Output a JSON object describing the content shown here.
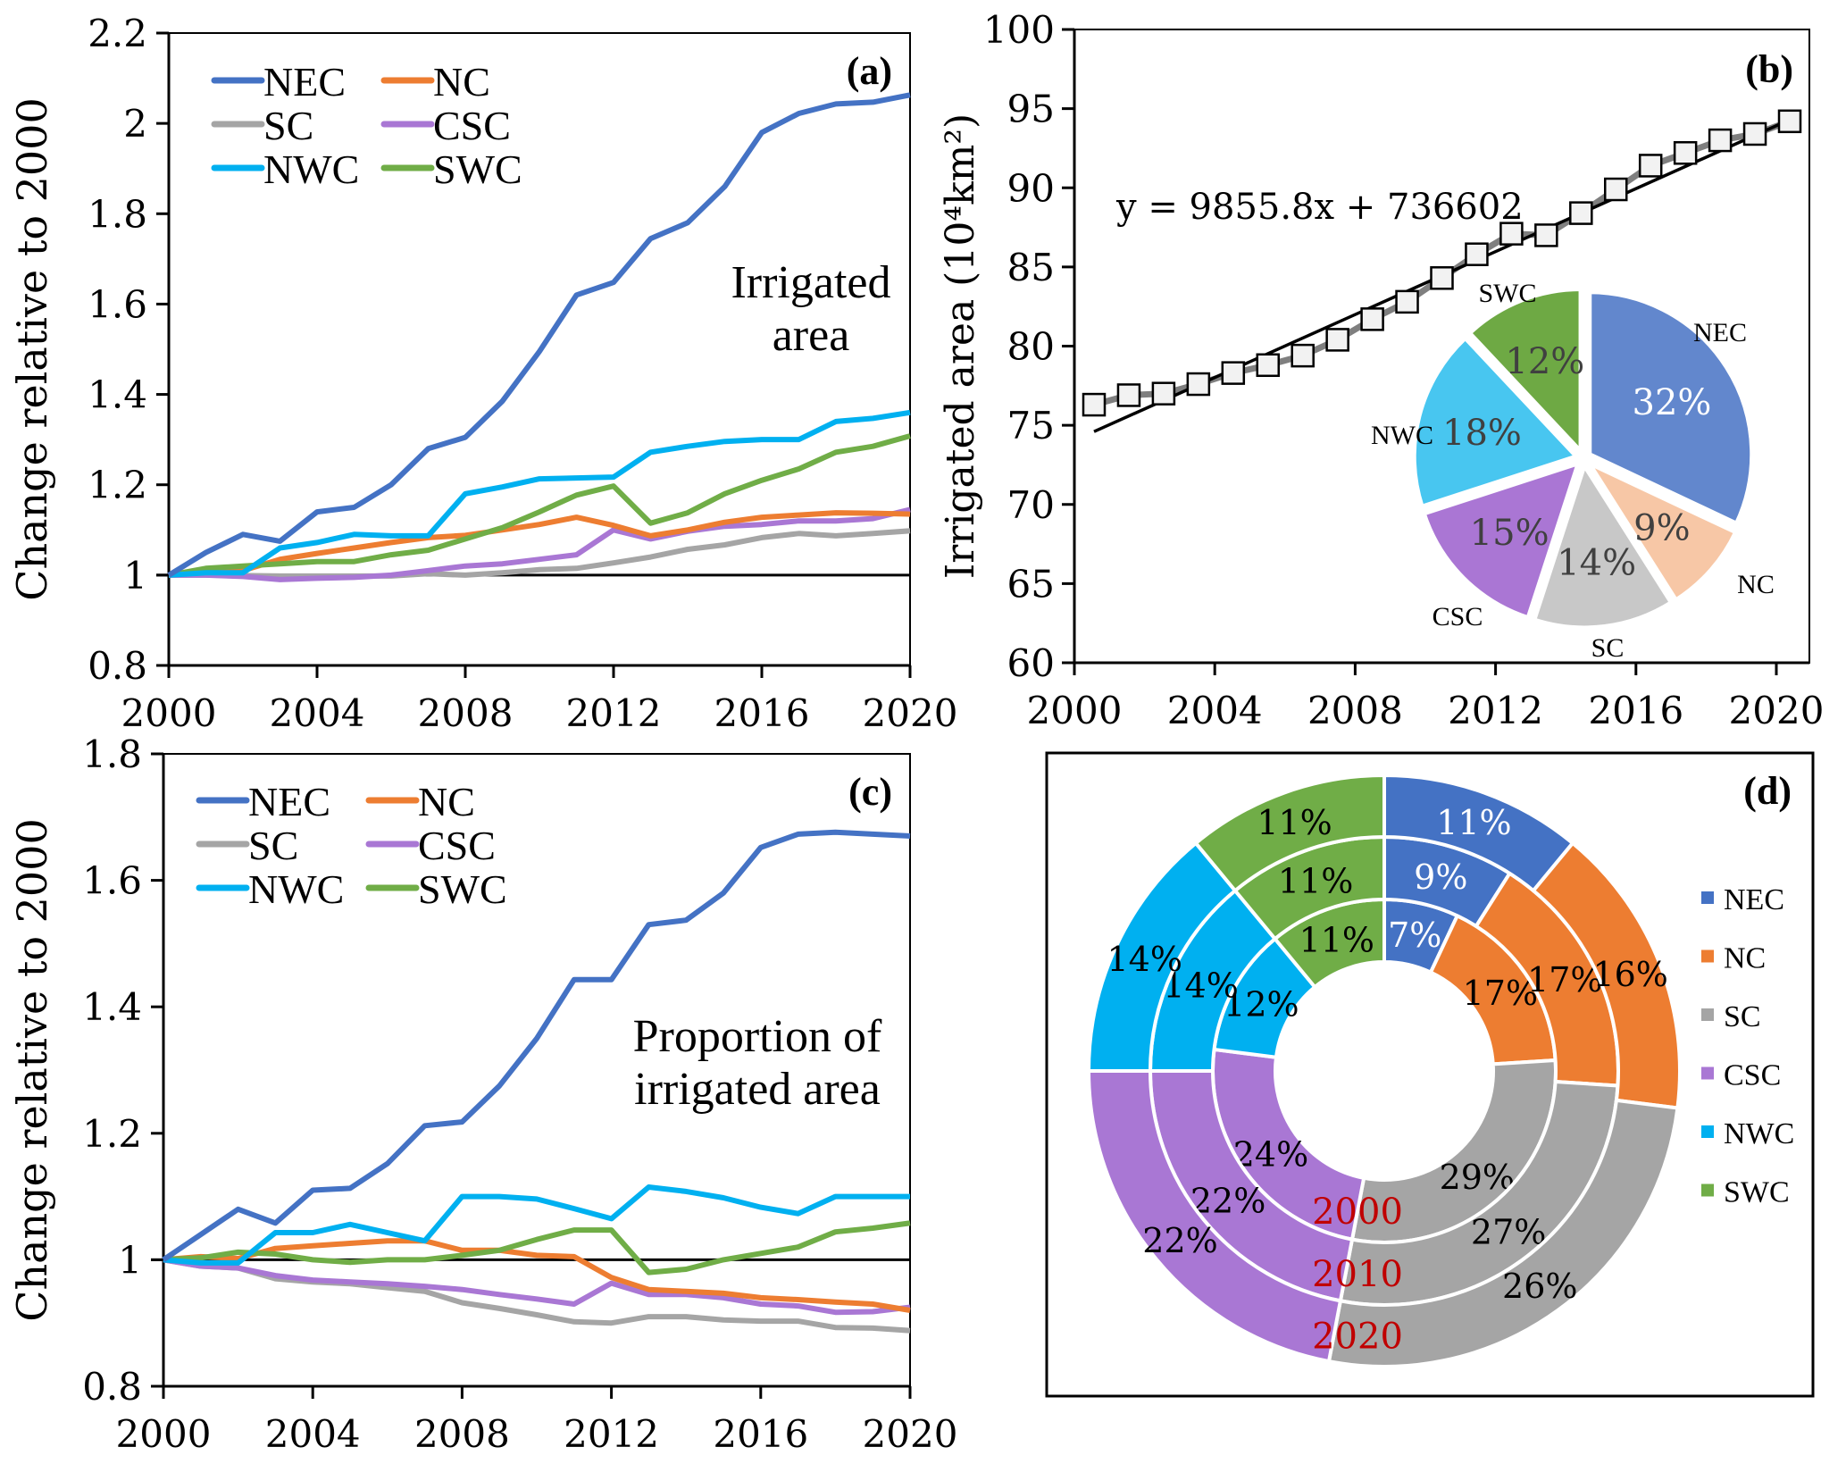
{
  "chart_data": [
    {
      "panel": "a",
      "type": "line",
      "panel_label": "(a)",
      "annotation": [
        "Irrigated",
        "area"
      ],
      "ylabel": "Change relative to 2000",
      "xlabel": "",
      "xlim": [
        2000,
        2020
      ],
      "ylim": [
        0.8,
        2.2
      ],
      "xticks": [
        "2000",
        "2004",
        "2008",
        "2012",
        "2016",
        "2020"
      ],
      "yticks": [
        "0.8",
        "1",
        "1.2",
        "1.4",
        "1.6",
        "1.8",
        "2",
        "2.2"
      ],
      "reference_line": 1,
      "legend_position": "top-left",
      "x": [
        2000,
        2001,
        2002,
        2003,
        2004,
        2005,
        2006,
        2007,
        2008,
        2009,
        2010,
        2011,
        2012,
        2013,
        2014,
        2015,
        2016,
        2017,
        2018,
        2019,
        2020
      ],
      "series": [
        {
          "name": "NEC",
          "color": "#4472C4",
          "values": [
            1.0,
            1.05,
            1.09,
            1.075,
            1.14,
            1.15,
            1.2,
            1.28,
            1.305,
            1.385,
            1.495,
            1.62,
            1.648,
            1.745,
            1.78,
            1.86,
            1.98,
            2.022,
            2.043,
            2.047,
            2.063
          ]
        },
        {
          "name": "NC",
          "color": "#ED7D31",
          "values": [
            1.0,
            1.01,
            1.01,
            1.035,
            1.048,
            1.06,
            1.072,
            1.083,
            1.088,
            1.1,
            1.112,
            1.128,
            1.11,
            1.087,
            1.1,
            1.117,
            1.128,
            1.133,
            1.138,
            1.137,
            1.135
          ]
        },
        {
          "name": "SC",
          "color": "#A5A5A5",
          "values": [
            1.0,
            1.0,
            0.999,
            0.998,
            0.998,
            0.998,
            0.998,
            1.003,
            1.0,
            1.005,
            1.012,
            1.015,
            1.027,
            1.04,
            1.057,
            1.067,
            1.083,
            1.092,
            1.087,
            1.092,
            1.098
          ]
        },
        {
          "name": "CSC",
          "color": "#A977D4",
          "values": [
            1.0,
            1.0,
            0.997,
            0.99,
            0.993,
            0.995,
            1.0,
            1.01,
            1.02,
            1.025,
            1.035,
            1.045,
            1.1,
            1.08,
            1.097,
            1.108,
            1.112,
            1.12,
            1.12,
            1.125,
            1.145
          ]
        },
        {
          "name": "NWC",
          "color": "#00B0F0",
          "values": [
            1.0,
            1.005,
            1.005,
            1.06,
            1.072,
            1.09,
            1.087,
            1.087,
            1.18,
            1.195,
            1.213,
            1.215,
            1.217,
            1.272,
            1.285,
            1.296,
            1.3,
            1.3,
            1.34,
            1.347,
            1.36
          ]
        },
        {
          "name": "SWC",
          "color": "#70AD47",
          "values": [
            1.0,
            1.015,
            1.02,
            1.025,
            1.03,
            1.03,
            1.045,
            1.055,
            1.08,
            1.105,
            1.14,
            1.177,
            1.197,
            1.115,
            1.138,
            1.18,
            1.21,
            1.235,
            1.272,
            1.285,
            1.308
          ]
        }
      ]
    },
    {
      "panel": "b",
      "type": "scatter",
      "panel_label": "(b)",
      "ylabel": "Irrigated area (10⁴km²)",
      "xlabel": "",
      "xlim": [
        2000,
        2020
      ],
      "ylim": [
        60,
        100
      ],
      "xticks": [
        "2000",
        "2004",
        "2008",
        "2012",
        "2016",
        "2020"
      ],
      "yticks": [
        "60",
        "65",
        "70",
        "75",
        "80",
        "85",
        "90",
        "95",
        "100"
      ],
      "equation": "y = 9855.8x + 736602",
      "trendline": {
        "type": "linear",
        "start": 74.6,
        "end": 94.3
      },
      "x": [
        2000,
        2001,
        2002,
        2003,
        2004,
        2005,
        2006,
        2007,
        2008,
        2009,
        2010,
        2011,
        2012,
        2013,
        2014,
        2015,
        2016,
        2017,
        2018,
        2019,
        2020
      ],
      "values": [
        76.3,
        76.9,
        77.0,
        77.6,
        78.3,
        78.8,
        79.4,
        80.4,
        81.7,
        82.8,
        84.3,
        85.8,
        87.1,
        87.0,
        88.4,
        89.9,
        91.4,
        92.2,
        93.0,
        93.4,
        94.2
      ],
      "inset_pie": {
        "type": "pie",
        "slices": [
          {
            "name": "NEC",
            "value": 32,
            "label": "32%",
            "color": "#6287CD",
            "text_color": "#ffffff"
          },
          {
            "name": "NC",
            "value": 9,
            "label": "9%",
            "color": "#F7C7A6",
            "text_color": "#404040"
          },
          {
            "name": "SC",
            "value": 14,
            "label": "14%",
            "color": "#C8C8C8",
            "text_color": "#404040"
          },
          {
            "name": "CSC",
            "value": 15,
            "label": "15%",
            "color": "#AA76D4",
            "text_color": "#404040"
          },
          {
            "name": "NWC",
            "value": 18,
            "label": "18%",
            "color": "#48C6F0",
            "text_color": "#404040"
          },
          {
            "name": "SWC",
            "value": 12,
            "label": "12%",
            "color": "#6EA944",
            "text_color": "#404040"
          }
        ]
      }
    },
    {
      "panel": "c",
      "type": "line",
      "panel_label": "(c)",
      "annotation": [
        "Proportion of",
        "irrigated area"
      ],
      "ylabel": "Change relative to 2000",
      "xlabel": "",
      "xlim": [
        2000,
        2020
      ],
      "ylim": [
        0.8,
        1.8
      ],
      "xticks": [
        "2000",
        "2004",
        "2008",
        "2012",
        "2016",
        "2020"
      ],
      "yticks": [
        "0.8",
        "1",
        "1.2",
        "1.4",
        "1.6",
        "1.8"
      ],
      "reference_line": 1,
      "legend_position": "top-left",
      "x": [
        2000,
        2001,
        2002,
        2003,
        2004,
        2005,
        2006,
        2007,
        2008,
        2009,
        2010,
        2011,
        2012,
        2013,
        2014,
        2015,
        2016,
        2017,
        2018,
        2019,
        2020
      ],
      "series": [
        {
          "name": "NEC",
          "color": "#4472C4",
          "values": [
            1.0,
            1.04,
            1.08,
            1.058,
            1.11,
            1.113,
            1.152,
            1.212,
            1.218,
            1.275,
            1.35,
            1.443,
            1.443,
            1.53,
            1.537,
            1.58,
            1.652,
            1.673,
            1.676,
            1.673,
            1.67
          ]
        },
        {
          "name": "NC",
          "color": "#ED7D31",
          "values": [
            1.0,
            1.005,
            1.002,
            1.018,
            1.022,
            1.026,
            1.03,
            1.03,
            1.015,
            1.015,
            1.007,
            1.005,
            0.972,
            0.953,
            0.95,
            0.947,
            0.94,
            0.937,
            0.933,
            0.93,
            0.92
          ]
        },
        {
          "name": "SC",
          "color": "#A5A5A5",
          "values": [
            1.0,
            0.99,
            0.987,
            0.97,
            0.965,
            0.962,
            0.956,
            0.95,
            0.932,
            0.923,
            0.913,
            0.902,
            0.9,
            0.91,
            0.91,
            0.905,
            0.903,
            0.903,
            0.893,
            0.892,
            0.888
          ]
        },
        {
          "name": "CSC",
          "color": "#A977D4",
          "values": [
            1.0,
            0.99,
            0.987,
            0.975,
            0.968,
            0.965,
            0.962,
            0.958,
            0.953,
            0.945,
            0.938,
            0.93,
            0.963,
            0.945,
            0.945,
            0.94,
            0.93,
            0.927,
            0.917,
            0.918,
            0.925
          ]
        },
        {
          "name": "NWC",
          "color": "#00B0F0",
          "values": [
            1.0,
            0.995,
            0.995,
            1.043,
            1.043,
            1.056,
            1.043,
            1.03,
            1.1,
            1.1,
            1.096,
            1.081,
            1.065,
            1.115,
            1.108,
            1.098,
            1.083,
            1.073,
            1.1,
            1.1,
            1.1
          ]
        },
        {
          "name": "SWC",
          "color": "#70AD47",
          "values": [
            1.0,
            1.003,
            1.012,
            1.009,
            1.0,
            0.996,
            1.0,
            1.0,
            1.007,
            1.015,
            1.032,
            1.047,
            1.047,
            0.98,
            0.985,
            1.0,
            1.01,
            1.02,
            1.044,
            1.05,
            1.058
          ]
        }
      ]
    },
    {
      "panel": "d",
      "type": "pie",
      "subtype": "donut",
      "panel_label": "(d)",
      "legend_position": "right",
      "categories": [
        "NEC",
        "NC",
        "SC",
        "CSC",
        "NWC",
        "SWC"
      ],
      "colors": [
        "#4472C4",
        "#ED7D31",
        "#A5A5A5",
        "#A977D4",
        "#00B0F0",
        "#70AD47"
      ],
      "ring_label_color": "#C00000",
      "rings": [
        {
          "year": "2000",
          "values": [
            7,
            17,
            29,
            24,
            12,
            11
          ],
          "labels": [
            "7%",
            "17%",
            "29%",
            "24%",
            "12%",
            "11%"
          ]
        },
        {
          "year": "2010",
          "values": [
            9,
            17,
            27,
            22,
            14,
            11
          ],
          "labels": [
            "9%",
            "17%",
            "27%",
            "22%",
            "14%",
            "11%"
          ]
        },
        {
          "year": "2020",
          "values": [
            11,
            16,
            26,
            22,
            14,
            11
          ],
          "labels": [
            "11%",
            "16%",
            "26%",
            "22%",
            "14%",
            "11%"
          ]
        }
      ]
    }
  ]
}
